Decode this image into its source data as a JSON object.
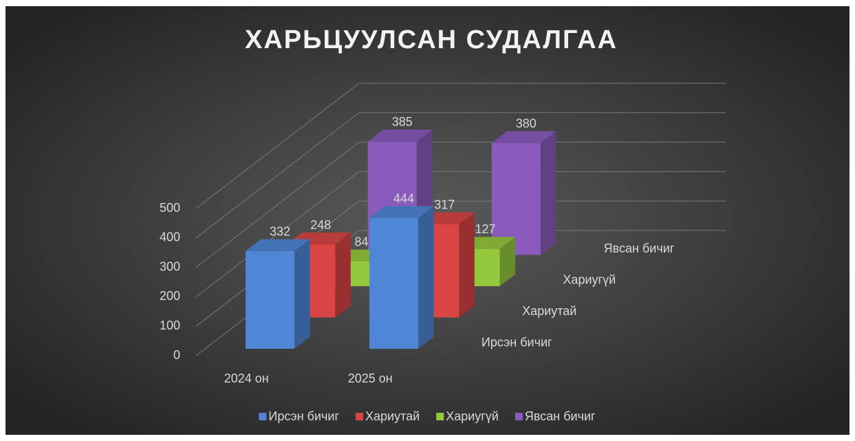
{
  "chart_data": {
    "type": "bar3d",
    "title": "ХАРЬЦУУЛСАН СУДАЛГАА",
    "categories": [
      "2024 он",
      "2025 он"
    ],
    "series": [
      {
        "name": "Ирсэн бичиг",
        "color": "#4f86d6",
        "values": [
          332,
          444
        ]
      },
      {
        "name": "Хариутай",
        "color": "#d94545",
        "values": [
          248,
          317
        ]
      },
      {
        "name": "Хариугүй",
        "color": "#95c93d",
        "values": [
          84,
          127
        ]
      },
      {
        "name": "Явсан бичиг",
        "color": "#8a5bbd",
        "values": [
          385,
          380
        ]
      }
    ],
    "ylim": [
      0,
      500
    ],
    "yticks": [
      0,
      100,
      200,
      300,
      400,
      500
    ],
    "grid": true,
    "legend": "bottom"
  }
}
